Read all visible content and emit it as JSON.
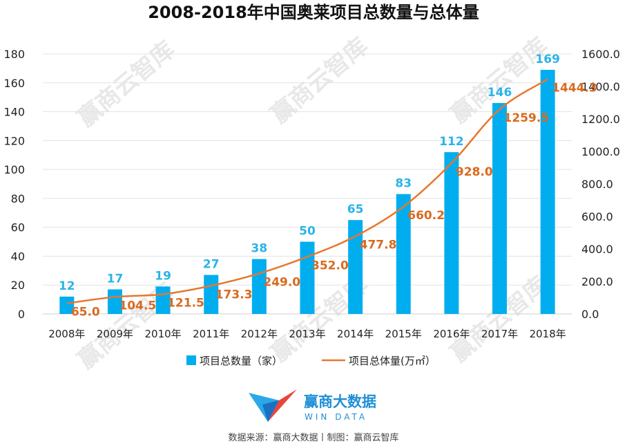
{
  "chart_data": {
    "type": "bar+line",
    "title": "2008-2018年中国奥莱项目总数量与总体量",
    "categories": [
      "2008年",
      "2009年",
      "2010年",
      "2011年",
      "2012年",
      "2013年",
      "2014年",
      "2015年",
      "2016年",
      "2017年",
      "2018年"
    ],
    "series": [
      {
        "name": "项目总数量（家）",
        "type": "bar",
        "axis": "left",
        "values": [
          12,
          17,
          19,
          27,
          38,
          50,
          65,
          83,
          112,
          146,
          169
        ],
        "labels": [
          "12",
          "17",
          "19",
          "27",
          "38",
          "50",
          "65",
          "83",
          "112",
          "146",
          "169"
        ],
        "color": "#00aeef"
      },
      {
        "name": "项目总体量(万㎡）",
        "type": "line",
        "axis": "right",
        "values": [
          65.0,
          104.5,
          121.5,
          173.3,
          249.0,
          352.0,
          477.8,
          660.2,
          928.0,
          1259.5,
          1444.3
        ],
        "labels": [
          "65.0",
          "104.5",
          "121.5",
          "173.3",
          "249.0",
          "352.0",
          "477.8",
          "660.2",
          "928.0",
          "1259.5",
          "1444.3"
        ],
        "color": "#e8762d"
      }
    ],
    "ylim_left": [
      0,
      180
    ],
    "yticks_left": [
      "0",
      "20",
      "40",
      "60",
      "80",
      "100",
      "120",
      "140",
      "160",
      "180"
    ],
    "ylim_right": [
      0,
      1600
    ],
    "yticks_right": [
      "0.0",
      "200.0",
      "400.0",
      "600.0",
      "800.0",
      "1000.0",
      "1200.0",
      "1400.0",
      "1600.0"
    ],
    "legend_position": "bottom",
    "grid": true
  },
  "watermark": {
    "text": "赢商云智库"
  },
  "logo": {
    "cn": "赢商大数据",
    "en": "WIN DATA"
  },
  "source": "数据来源：赢商大数据丨制图：赢商云智库",
  "colors": {
    "bar": "#00aeef",
    "line": "#e8762d",
    "label_bar": "#2ab4e8",
    "label_line": "#d96a1e",
    "grid": "#e3e3e3"
  }
}
